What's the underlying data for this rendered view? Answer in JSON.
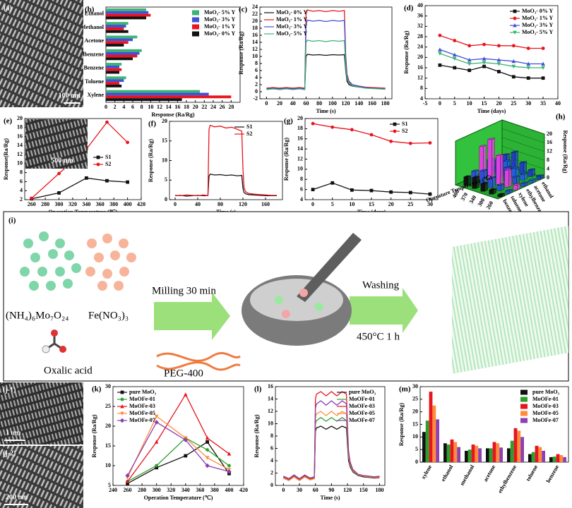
{
  "chart_data": [
    {
      "type": "bar",
      "orientation": "horizontal",
      "label": "(b)",
      "xlabel": "Response (Ra/Rg)",
      "categories": [
        "Ethanol",
        "Methanol",
        "Acetone",
        "Ethylbenzene",
        "Benzene",
        "Toluene",
        "Xylene"
      ],
      "series": [
        {
          "name": "MoO₃- 5% Y",
          "color": "#3cb371",
          "values": [
            9,
            5,
            7,
            8,
            3.5,
            4.5,
            21
          ]
        },
        {
          "name": "MoO₃- 3% Y",
          "color": "#3f51d8",
          "values": [
            9.5,
            4.5,
            6,
            7.5,
            3,
            4,
            23
          ]
        },
        {
          "name": "MoO₃- 1% Y",
          "color": "#e8141e",
          "values": [
            10,
            4,
            5,
            7,
            3.5,
            3,
            28
          ]
        },
        {
          "name": "MoO₃- 0% Y",
          "color": "#111111",
          "values": [
            9,
            5,
            4,
            6,
            3,
            3.5,
            17
          ]
        }
      ],
      "xlim": [
        0,
        30
      ],
      "xticks": [
        0,
        2,
        4,
        6,
        8,
        10,
        12,
        14,
        16,
        18,
        20,
        22,
        24,
        26,
        28
      ],
      "legend": "upper right"
    },
    {
      "type": "line",
      "label": "(c)",
      "xlabel": "Time (s)",
      "ylabel": "Response (Ra/Rg)",
      "x": [
        0,
        10,
        20,
        30,
        40,
        50,
        58,
        60,
        62,
        70,
        80,
        90,
        100,
        110,
        118,
        120,
        122,
        125,
        130,
        140,
        150,
        160,
        170,
        180
      ],
      "series": [
        {
          "name": "MoO₃- 0% Y",
          "color": "#111111",
          "values": [
            1,
            1.1,
            1,
            1.1,
            1,
            1.1,
            1,
            10,
            10.6,
            10.4,
            10.5,
            10.3,
            10.5,
            10.4,
            10.5,
            6,
            3,
            2,
            1.6,
            1.3,
            1.2,
            1.1,
            1,
            1
          ]
        },
        {
          "name": "MoO₃- 1% Y",
          "color": "#e8141e",
          "values": [
            1,
            1.2,
            1,
            1.2,
            1,
            1.2,
            1,
            22,
            23.2,
            22.8,
            23,
            22.7,
            23,
            22.8,
            23,
            10,
            5,
            3,
            2,
            1.6,
            1.3,
            1.2,
            1.1,
            1
          ]
        },
        {
          "name": "MoO₃- 3% Y",
          "color": "#3f51d8",
          "values": [
            0.8,
            1,
            0.8,
            1,
            0.8,
            1,
            0.8,
            19,
            20.3,
            20,
            20.2,
            19.9,
            20.2,
            20,
            20.2,
            9,
            4.5,
            2.8,
            2,
            1.5,
            1.2,
            1,
            0.9,
            0.8
          ]
        },
        {
          "name": "MoO₃- 5% Y",
          "color": "#3cb371",
          "values": [
            0.6,
            0.8,
            0.6,
            0.8,
            0.6,
            0.8,
            0.6,
            14,
            14.6,
            14.3,
            14.5,
            14.2,
            14.5,
            14.3,
            14.5,
            7,
            3.8,
            2.4,
            1.7,
            1.3,
            1,
            0.9,
            0.8,
            0.7
          ]
        }
      ],
      "xlim": [
        -10,
        190
      ],
      "xticks": [
        0,
        20,
        40,
        60,
        80,
        100,
        120,
        140,
        160,
        180
      ],
      "ylim": [
        -2,
        24
      ],
      "yticks": [
        -2,
        0,
        2,
        4,
        6,
        8,
        10,
        12,
        14,
        16,
        18,
        20,
        22,
        24
      ],
      "legend": "upper left",
      "markers": false
    },
    {
      "type": "line",
      "label": "(d)",
      "xlabel": "Time (days)",
      "ylabel": "Response (Ra/Rg)",
      "x": [
        0,
        5,
        10,
        15,
        20,
        25,
        30,
        35
      ],
      "series": [
        {
          "name": "MoO₃- 0% Y",
          "color": "#111111",
          "values": [
            17,
            16,
            15,
            16.5,
            14.5,
            12.5,
            12,
            12
          ]
        },
        {
          "name": "MoO₃- 1% Y",
          "color": "#e8141e",
          "values": [
            28.5,
            26.5,
            24.5,
            25,
            24.5,
            24.5,
            23.5,
            23.5
          ]
        },
        {
          "name": "MoO₃- 3% Y",
          "color": "#3f51d8",
          "values": [
            23,
            21,
            19,
            19.5,
            19,
            18.5,
            17.5,
            17.5
          ]
        },
        {
          "name": "MoO₃- 5% Y",
          "color": "#3cb371",
          "values": [
            21.5,
            19.5,
            17.5,
            18,
            17.5,
            16.5,
            16,
            16
          ]
        }
      ],
      "xlim": [
        -5,
        40
      ],
      "xticks": [
        -5,
        0,
        5,
        10,
        15,
        20,
        25,
        30,
        35,
        40
      ],
      "ylim": [
        4,
        40
      ],
      "yticks": [
        4,
        8,
        12,
        16,
        20,
        24,
        28,
        32,
        36,
        40
      ],
      "legend": "upper right",
      "markers": true
    },
    {
      "type": "line",
      "label": "(e)",
      "xlabel": "Operation Temperature (℃)",
      "ylabel": "Response(Ra/Rg)",
      "x": [
        260,
        300,
        340,
        370,
        400
      ],
      "series": [
        {
          "name": "S1",
          "color": "#111111",
          "values": [
            2.2,
            3.5,
            6.8,
            6.2,
            5.9
          ]
        },
        {
          "name": "S2",
          "color": "#e8141e",
          "values": [
            2.3,
            7.8,
            13.2,
            19.2,
            14.7
          ]
        }
      ],
      "xlim": [
        250,
        420
      ],
      "xticks": [
        260,
        280,
        300,
        320,
        340,
        360,
        380,
        400,
        420
      ],
      "ylim": [
        2,
        20
      ],
      "yticks": [
        2,
        4,
        6,
        8,
        10,
        12,
        14,
        16,
        18,
        20
      ],
      "legend": "lower right",
      "markers": true
    },
    {
      "type": "line",
      "label": "(f)",
      "xlabel": "Time (s)",
      "ylabel": "Response (Ra/Rg)",
      "x": [
        0,
        10,
        20,
        30,
        40,
        50,
        58,
        60,
        62,
        70,
        80,
        90,
        100,
        110,
        118,
        120,
        122,
        125,
        130,
        140,
        150,
        160,
        170,
        180
      ],
      "series": [
        {
          "name": "S1",
          "color": "#111111",
          "values": [
            1,
            1.1,
            0.9,
            1,
            1.1,
            1,
            1,
            6,
            6.5,
            6.3,
            6.4,
            6.2,
            6.3,
            6.1,
            6.2,
            3,
            1.8,
            1.5,
            1.3,
            1.2,
            1.1,
            1,
            1,
            1
          ]
        },
        {
          "name": "S2",
          "color": "#e8141e",
          "values": [
            1.1,
            1,
            1.2,
            1.1,
            1,
            1.2,
            1,
            18,
            19,
            18.6,
            18.8,
            18.3,
            18.5,
            18,
            17.5,
            8,
            3,
            2,
            1.6,
            1.4,
            1.3,
            1.2,
            1.1,
            1.1
          ]
        }
      ],
      "xlim": [
        -10,
        190
      ],
      "xticks": [
        0,
        40,
        80,
        120,
        160
      ],
      "ylim": [
        0,
        20
      ],
      "yticks": [
        0,
        5,
        10,
        15,
        20
      ],
      "legend": "upper right",
      "markers": false
    },
    {
      "type": "line",
      "label": "(g)",
      "xlabel": "Time (days)",
      "ylabel": "Response (Ra/Rg)",
      "x": [
        0,
        5,
        10,
        15,
        20,
        25,
        30
      ],
      "series": [
        {
          "name": "S1",
          "color": "#111111",
          "values": [
            6,
            7.3,
            5.9,
            5.8,
            5.5,
            5.4,
            5.1
          ]
        },
        {
          "name": "S2",
          "color": "#e8141e",
          "values": [
            19,
            18.3,
            17.8,
            16.8,
            15.5,
            15.1,
            15.2
          ]
        }
      ],
      "xlim": [
        -2,
        32
      ],
      "xticks": [
        0,
        5,
        10,
        15,
        20,
        25,
        30
      ],
      "ylim": [
        4,
        20
      ],
      "yticks": [
        4,
        6,
        8,
        10,
        12,
        14,
        16,
        18,
        20
      ],
      "legend": "upper right",
      "markers": true
    },
    {
      "type": "bar3d",
      "label": "(h)",
      "xlabel": "Operature Temperature (℃)",
      "zlabel": "Response (Ra/Rg)",
      "categories": [
        "260",
        "300",
        "340",
        "370",
        "400"
      ],
      "series": [
        {
          "name": "benzene",
          "color": "#111111",
          "values": [
            1.1,
            2,
            3.5,
            5,
            4
          ]
        },
        {
          "name": "toluene",
          "color": "#2b4fd8",
          "values": [
            1.2,
            2.5,
            4.5,
            6.5,
            5
          ]
        },
        {
          "name": "xylene",
          "color": "#e040e0",
          "values": [
            2.3,
            7.8,
            13.2,
            19.2,
            14.7
          ]
        },
        {
          "name": "ethylbenzene",
          "color": "#2a4fd0",
          "values": [
            1.5,
            3,
            6,
            9,
            7
          ]
        },
        {
          "name": "acetone",
          "color": "#1f5fdf",
          "values": [
            1.2,
            2.5,
            4,
            6,
            5
          ]
        },
        {
          "name": "ethanol",
          "color": "#1f3fbf",
          "values": [
            1.5,
            3,
            5,
            8.5,
            6
          ]
        }
      ],
      "zlim": [
        0,
        20
      ],
      "zticks": [
        0,
        4,
        8,
        12,
        16,
        20
      ]
    },
    {
      "type": "line",
      "label": "(k)",
      "xlabel": "Operation Temperature (℃)",
      "ylabel": "Response (Ra/Rg)",
      "x": [
        260,
        300,
        340,
        370,
        400
      ],
      "series": [
        {
          "name": "pure MoO₃",
          "color": "#111111",
          "values": [
            5.5,
            9.5,
            12.5,
            16,
            8
          ]
        },
        {
          "name": "MoOFe-01",
          "color": "#2ca02c",
          "values": [
            6,
            10,
            17,
            14,
            10
          ]
        },
        {
          "name": "MoOFe-03",
          "color": "#e8141e",
          "values": [
            6,
            16,
            28,
            17,
            13
          ]
        },
        {
          "name": "MoOFe-05",
          "color": "#ff8c3a",
          "values": [
            7,
            22.5,
            17,
            12,
            9
          ]
        },
        {
          "name": "MoOFe-07",
          "color": "#8e3fb0",
          "values": [
            7.5,
            21,
            16.5,
            10,
            8.5
          ]
        }
      ],
      "xlim": [
        240,
        420
      ],
      "xticks": [
        240,
        260,
        280,
        300,
        320,
        340,
        360,
        380,
        400,
        420
      ],
      "ylim": [
        5,
        30
      ],
      "yticks": [
        5,
        10,
        15,
        20,
        25,
        30
      ],
      "legend": "upper left",
      "markers": true
    },
    {
      "type": "line",
      "label": "(l)",
      "xlabel": "Time (s)",
      "ylabel": "Response (Ra/Rg)",
      "x": [
        0,
        10,
        20,
        30,
        40,
        50,
        58,
        60,
        62,
        70,
        80,
        90,
        100,
        110,
        118,
        120,
        122,
        125,
        130,
        140,
        150,
        160,
        170,
        180
      ],
      "series": [
        {
          "name": "pure MoO₃",
          "color": "#111111",
          "values": [
            1.2,
            0.8,
            1.4,
            0.8,
            1.4,
            0.9,
            1.1,
            8.8,
            9.3,
            9.6,
            9.1,
            9.6,
            9.1,
            9.6,
            9.3,
            6.5,
            4,
            3,
            2.2,
            1.6,
            1.4,
            1.3,
            1.2,
            1.2
          ]
        },
        {
          "name": "MoOFe-01",
          "color": "#2ca02c",
          "values": [
            1.3,
            0.9,
            1.5,
            0.9,
            1.5,
            1,
            1.2,
            10,
            10.5,
            11,
            10.4,
            11,
            10.4,
            11,
            10.5,
            7.5,
            4.5,
            3.2,
            2.3,
            1.7,
            1.5,
            1.4,
            1.3,
            1.3
          ]
        },
        {
          "name": "MoOFe-03",
          "color": "#e8141e",
          "values": [
            1.4,
            1,
            1.6,
            1,
            1.6,
            1.1,
            1.3,
            14,
            14.8,
            15.2,
            14.5,
            15.2,
            14.5,
            15.2,
            14.8,
            9.5,
            5.5,
            3.8,
            2.6,
            1.8,
            1.6,
            1.5,
            1.4,
            1.4
          ]
        },
        {
          "name": "MoOFe-05",
          "color": "#ff8c3a",
          "values": [
            1.2,
            0.8,
            1.4,
            0.8,
            1.4,
            0.9,
            1.1,
            11,
            11.6,
            12,
            11.3,
            12,
            11.3,
            12,
            11.6,
            8,
            4.8,
            3.4,
            2.4,
            1.7,
            1.5,
            1.4,
            1.3,
            1.2
          ]
        },
        {
          "name": "MoOFe-07",
          "color": "#8e3fb0",
          "values": [
            1.5,
            1.1,
            1.7,
            1.1,
            1.7,
            1.2,
            1.4,
            12.5,
            13.2,
            13.7,
            13,
            13.7,
            13,
            13.7,
            13.2,
            8.8,
            5.2,
            3.6,
            2.5,
            1.8,
            1.6,
            1.5,
            1.4,
            1.5
          ]
        }
      ],
      "xlim": [
        -15,
        190
      ],
      "xticks": [
        0,
        30,
        60,
        90,
        120,
        150,
        180
      ],
      "ylim": [
        0,
        16
      ],
      "yticks": [
        0,
        2,
        4,
        6,
        8,
        10,
        12,
        14,
        16
      ],
      "legend": "upper right",
      "markers": false
    },
    {
      "type": "bar",
      "orientation": "vertical",
      "label": "(m)",
      "ylabel": "Response (Ra/Rg)",
      "categories": [
        "xylene",
        "ethanol",
        "methanol",
        "acetone",
        "ethylbenzene",
        "toluene",
        "benzene"
      ],
      "series": [
        {
          "name": "pure MoO₃",
          "color": "#111111",
          "values": [
            12,
            7.5,
            4.5,
            5.5,
            5.5,
            3.2,
            2
          ]
        },
        {
          "name": "MoOFe-01",
          "color": "#2ca02c",
          "values": [
            16.5,
            7,
            5,
            5.5,
            8.5,
            4,
            2.2
          ]
        },
        {
          "name": "MoOFe-03",
          "color": "#e8141e",
          "values": [
            28,
            9,
            7,
            8,
            13.5,
            6.5,
            3.2
          ]
        },
        {
          "name": "MoOFe-05",
          "color": "#ff8c3a",
          "values": [
            22.5,
            8,
            6.5,
            7.5,
            12.5,
            6,
            2.8
          ]
        },
        {
          "name": "MoOFe-07",
          "color": "#8e3fb0",
          "values": [
            17,
            6,
            5.5,
            5.8,
            10,
            4.5,
            2
          ]
        }
      ],
      "ylim": [
        0,
        30
      ],
      "yticks": [
        0,
        5,
        10,
        15,
        20,
        25,
        30
      ],
      "legend": "upper right"
    }
  ],
  "images": [
    {
      "label": "(a)",
      "scale": "100 nm"
    },
    {
      "scale": "500 nm"
    },
    {
      "label": "(j-1)",
      "scale": "1 um"
    },
    {
      "label": "(j-2)",
      "scale": "200 nm"
    }
  ],
  "schematic": {
    "label": "(i)",
    "precursor_1": "(NH₄)₆Mo₇O₂₄",
    "precursor_2": "Fe(NO₃)₃",
    "precursor_3": "Oxalic acid",
    "step_1": "Milling 30 min",
    "additive": "PEG-400",
    "step_2": "Washing",
    "step_3": "450°C 1 h"
  }
}
